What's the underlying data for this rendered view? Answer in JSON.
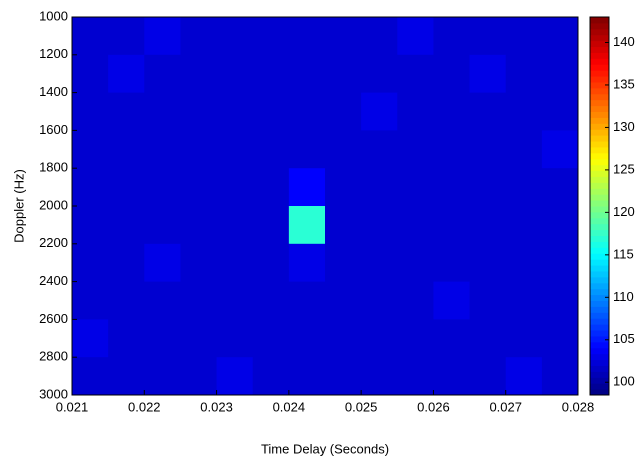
{
  "chart_data": {
    "type": "heatmap",
    "xlabel": "Time Delay (Seconds)",
    "ylabel": "Doppler (Hz)",
    "xlim": [
      0.021,
      0.028
    ],
    "xticks": [
      0.021,
      0.022,
      0.023,
      0.024,
      0.025,
      0.026,
      0.027,
      0.028
    ],
    "ylim": [
      1000,
      3000
    ],
    "y_reversed": true,
    "yticks": [
      1000,
      1200,
      1400,
      1600,
      1800,
      2000,
      2200,
      2400,
      2600,
      2800,
      3000
    ],
    "clim": [
      98.5,
      143
    ],
    "cticks": [
      100,
      105,
      110,
      115,
      120,
      125,
      130,
      135,
      140
    ],
    "colormap": "jet",
    "z": [
      [
        102,
        102,
        103,
        102,
        102,
        102,
        102,
        102,
        102,
        103,
        102,
        102,
        102,
        102
      ],
      [
        102,
        103,
        102,
        102,
        102,
        102,
        102,
        102,
        102,
        102,
        102,
        103,
        102,
        102
      ],
      [
        102,
        102,
        102,
        102,
        102,
        102,
        102,
        102,
        103,
        102,
        102,
        102,
        102,
        102
      ],
      [
        102,
        102,
        102,
        102,
        102,
        102,
        102,
        102,
        102,
        102,
        102,
        102,
        102,
        103
      ],
      [
        102,
        102,
        102,
        102,
        102,
        102,
        104,
        102,
        102,
        102,
        102,
        102,
        102,
        102
      ],
      [
        102,
        102,
        102,
        102,
        102,
        102,
        117,
        102,
        102,
        102,
        102,
        102,
        102,
        102
      ],
      [
        102,
        102,
        103,
        102,
        102,
        102,
        103,
        102,
        102,
        102,
        102,
        102,
        102,
        102
      ],
      [
        102,
        102,
        102,
        102,
        102,
        102,
        102,
        102,
        102,
        102,
        103,
        102,
        102,
        102
      ],
      [
        103,
        102,
        102,
        102,
        102,
        102,
        102,
        102,
        102,
        102,
        102,
        102,
        102,
        102
      ],
      [
        102,
        102,
        102,
        102,
        103,
        102,
        102,
        102,
        102,
        102,
        102,
        102,
        103,
        102
      ]
    ]
  }
}
